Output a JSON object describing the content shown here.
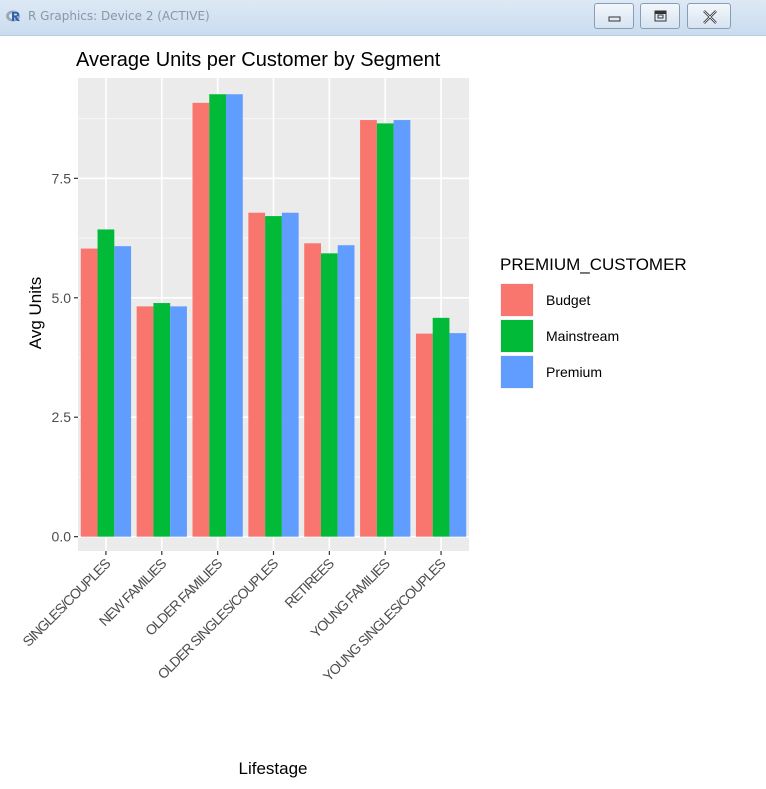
{
  "window": {
    "title": "R Graphics: Device 2 (ACTIVE)",
    "app_icon": "r-logo-icon",
    "buttons": [
      {
        "name": "minimize-button",
        "icon": "minimize-icon"
      },
      {
        "name": "maximize-button",
        "icon": "maximize-icon"
      },
      {
        "name": "close-button",
        "icon": "close-icon"
      }
    ]
  },
  "chart_data": {
    "type": "bar",
    "title": "Average Units per Customer by Segment",
    "xlabel": "Lifestage",
    "ylabel": "Avg Units",
    "categories": [
      "MIDAGE SINGLES/COUPLES",
      "NEW FAMILIES",
      "OLDER FAMILIES",
      "OLDER SINGLES/COUPLES",
      "RETIREES",
      "YOUNG FAMILIES",
      "YOUNG SINGLES/COUPLES"
    ],
    "category_labels": [
      "SINGLES/COUPLES",
      "NEW FAMILIES",
      "OLDER FAMILIES",
      "OLDER SINGLES/COUPLES",
      "RETIREES",
      "YOUNG FAMILIES",
      "YOUNG SINGLES/COUPLES"
    ],
    "series": [
      {
        "name": "Budget",
        "color": "#F8766D",
        "values": [
          6.03,
          4.82,
          9.08,
          6.78,
          6.14,
          8.72,
          4.25
        ]
      },
      {
        "name": "Mainstream",
        "color": "#00BA38",
        "values": [
          6.43,
          4.89,
          9.26,
          6.71,
          5.93,
          8.65,
          4.58
        ]
      },
      {
        "name": "Premium",
        "color": "#619CFF",
        "values": [
          6.08,
          4.82,
          9.26,
          6.78,
          6.1,
          8.72,
          4.26
        ]
      }
    ],
    "ylim": [
      -0.3,
      9.6
    ],
    "yticks": [
      0,
      2.5,
      5,
      7.5
    ],
    "ytick_labels": [
      "0.0",
      "2.5",
      "5.0",
      "7.5"
    ],
    "grid": true,
    "legend": {
      "title": "PREMIUM_CUSTOMER",
      "position": "right"
    }
  }
}
